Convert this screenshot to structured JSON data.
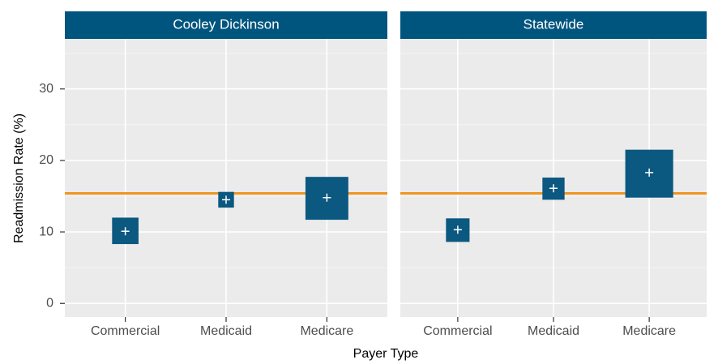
{
  "chart_data": {
    "type": "crossbar",
    "x_label": "Payer Type",
    "y_label": "Readmission Rate (%)",
    "categories": [
      "Commercial",
      "Medicaid",
      "Medicare"
    ],
    "ylim": [
      -1.9,
      37
    ],
    "yticks": [
      0,
      10,
      20,
      30
    ],
    "minor_yticks": [
      5,
      15,
      25,
      35
    ],
    "grid": true,
    "color": "#0b5880",
    "reference_line": 15.4,
    "reference_color": "#f0961f",
    "panels": [
      {
        "title": "Cooley Dickinson",
        "estimate": [
          10.1,
          14.5,
          14.8
        ],
        "lower": [
          8.3,
          13.4,
          11.7
        ],
        "upper": [
          12.0,
          15.6,
          17.7
        ]
      },
      {
        "title": "Statewide",
        "estimate": [
          10.3,
          16.1,
          18.3
        ],
        "lower": [
          8.6,
          14.5,
          14.8
        ],
        "upper": [
          11.9,
          17.6,
          21.5
        ]
      }
    ]
  }
}
